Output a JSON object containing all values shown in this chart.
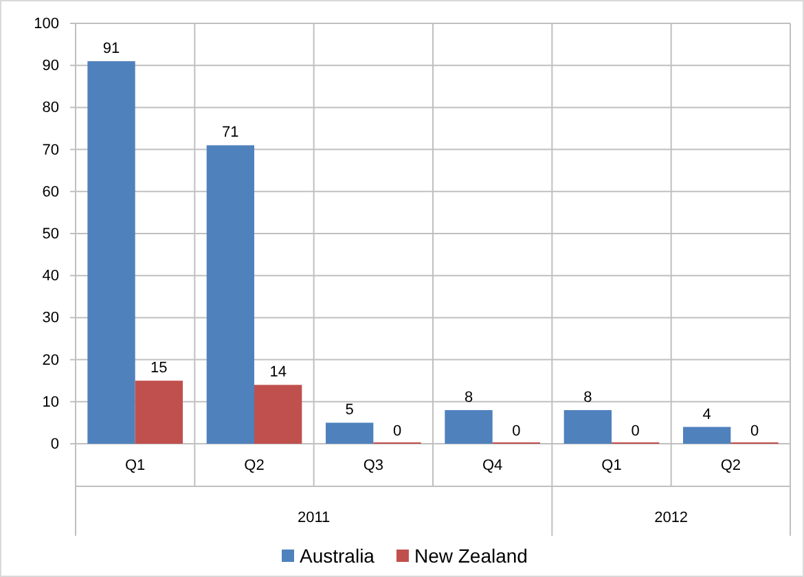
{
  "chart_data": {
    "type": "bar",
    "categories": [
      "Q1",
      "Q2",
      "Q3",
      "Q4",
      "Q1",
      "Q2"
    ],
    "series": [
      {
        "name": "Australia",
        "color": "#4f81bd",
        "values": [
          91,
          71,
          5,
          8,
          8,
          4
        ]
      },
      {
        "name": "New Zealand",
        "color": "#c0504d",
        "values": [
          15,
          14,
          0,
          0,
          0,
          0
        ]
      }
    ],
    "ylim": [
      0,
      100
    ],
    "yticks": [
      0,
      10,
      20,
      30,
      40,
      50,
      60,
      70,
      80,
      90,
      100
    ],
    "grid": true,
    "data_labels": true,
    "legend": "bottom",
    "annotations": [
      "2011",
      "2012"
    ]
  }
}
